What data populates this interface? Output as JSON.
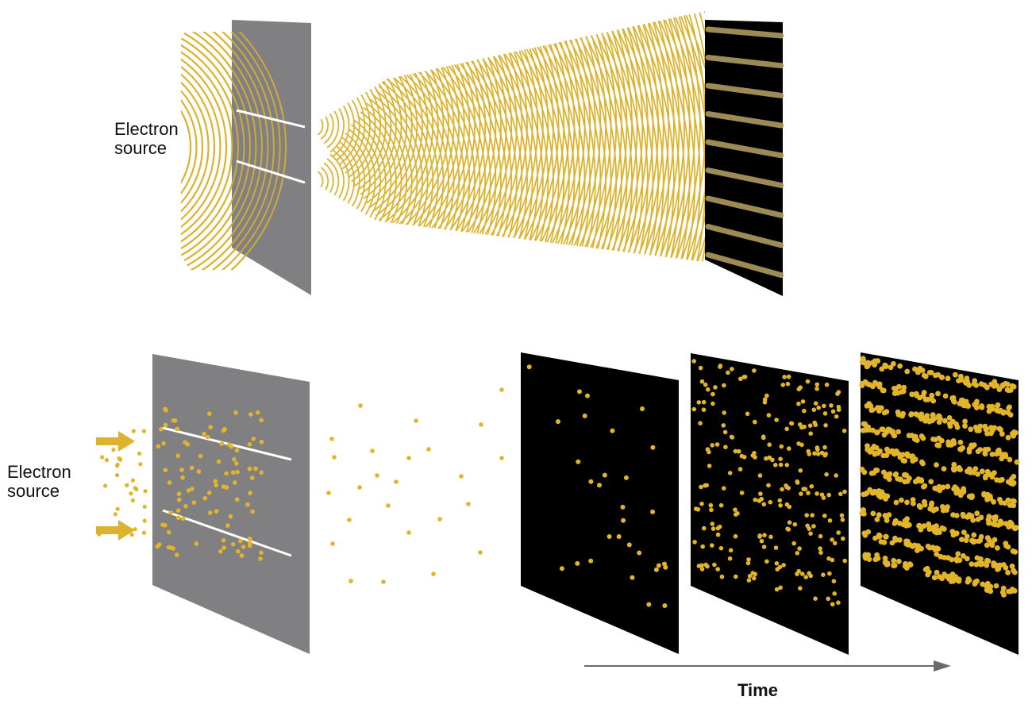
{
  "top_panel": {
    "source_label_line1": "Electron",
    "source_label_line2": "source"
  },
  "bottom_panel": {
    "source_label_line1": "Electron",
    "source_label_line2": "source"
  },
  "time_axis": {
    "label": "Time"
  },
  "colors": {
    "wave": "#dcb22e",
    "electron": "#e2b42a",
    "barrier": "#808083",
    "screen": "#000000",
    "slit": "#ffffff",
    "fringe": "#b9a466",
    "arrow": "#6a6a6a"
  }
}
